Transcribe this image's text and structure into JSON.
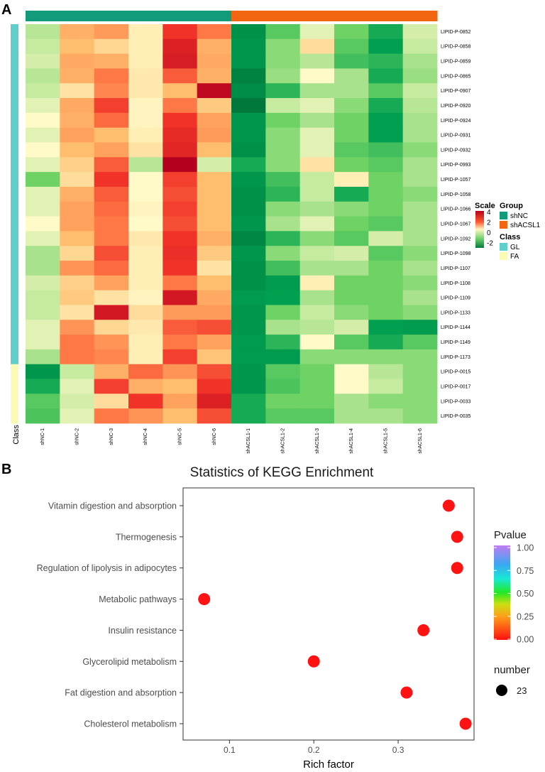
{
  "panels": {
    "a": "A",
    "b": "B"
  },
  "chart_data": [
    {
      "type": "heatmap",
      "panel": "A",
      "columns": [
        "shNC-1",
        "shNC-2",
        "shNC-3",
        "shNC-4",
        "shNC-5",
        "shNC-6",
        "shACSL1-1",
        "shACSL1-2",
        "shACSL1-3",
        "shACSL1-4",
        "shACSL1-5",
        "shACSL1-6"
      ],
      "column_groups": [
        "shNC",
        "shNC",
        "shNC",
        "shNC",
        "shNC",
        "shNC",
        "shACSL1",
        "shACSL1",
        "shACSL1",
        "shACSL1",
        "shACSL1",
        "shACSL1"
      ],
      "rows": [
        "LIPID-P-0852",
        "LIPID-P-0858",
        "LIPID-P-0859",
        "LIPID-P-0865",
        "LIPID-P-0907",
        "LIPID-P-0920",
        "LIPID-P-0924",
        "LIPID-P-0931",
        "LIPID-P-0932",
        "LIPID-P-0993",
        "LIPID-P-1057",
        "LIPID-P-1058",
        "LIPID-P-1066",
        "LIPID-P-1067",
        "LIPID-P-1092",
        "LIPID-P-1098",
        "LIPID-P-1107",
        "LIPID-P-1108",
        "LIPID-P-1109",
        "LIPID-P-1133",
        "LIPID-P-1144",
        "LIPID-P-1149",
        "LIPID-P-1173",
        "LIPID-P-0015",
        "LIPID-P-0017",
        "LIPID-P-0033",
        "LIPID-P-0035"
      ],
      "row_classes": [
        "GL",
        "GL",
        "GL",
        "GL",
        "GL",
        "GL",
        "GL",
        "GL",
        "GL",
        "GL",
        "GL",
        "GL",
        "GL",
        "GL",
        "GL",
        "GL",
        "GL",
        "GL",
        "GL",
        "GL",
        "GL",
        "GL",
        "GL",
        "FA",
        "FA",
        "FA",
        "FA"
      ],
      "values": [
        [
          -0.5,
          1.2,
          1.5,
          0.2,
          3.0,
          2.0,
          -2.3,
          -1.2,
          -0.2,
          -1.0,
          -1.8,
          -0.3
        ],
        [
          -0.4,
          1.0,
          0.6,
          0.2,
          3.4,
          1.2,
          -2.2,
          -0.8,
          0.5,
          -1.2,
          -2.0,
          -0.4
        ],
        [
          -0.3,
          1.3,
          1.2,
          0.2,
          3.5,
          1.3,
          -2.2,
          -0.8,
          -0.5,
          -1.4,
          -1.6,
          -0.6
        ],
        [
          -0.5,
          1.2,
          2.0,
          0.3,
          2.4,
          1.2,
          -2.6,
          -0.7,
          0.0,
          -0.6,
          -1.8,
          -0.7
        ],
        [
          -0.4,
          0.4,
          1.8,
          0.3,
          1.0,
          4.0,
          -2.4,
          -1.6,
          -0.6,
          -0.6,
          -1.2,
          -0.4
        ],
        [
          -0.2,
          1.3,
          2.8,
          0.1,
          2.0,
          0.8,
          -2.8,
          -0.4,
          -0.2,
          -0.8,
          -1.8,
          -0.5
        ],
        [
          0.0,
          1.2,
          2.2,
          0.1,
          3.0,
          1.4,
          -2.2,
          -1.0,
          -0.6,
          -1.0,
          -2.0,
          -0.6
        ],
        [
          -0.2,
          1.4,
          1.0,
          0.2,
          3.2,
          1.5,
          -2.2,
          -0.8,
          -0.2,
          -1.0,
          -2.0,
          -0.6
        ],
        [
          0.0,
          1.0,
          1.4,
          0.4,
          3.3,
          1.0,
          -2.3,
          -0.8,
          -0.2,
          -1.2,
          -1.4,
          -0.8
        ],
        [
          -0.2,
          0.7,
          2.4,
          -0.5,
          4.2,
          -0.3,
          -1.8,
          -0.8,
          0.4,
          -1.0,
          -1.2,
          -0.6
        ],
        [
          -1.0,
          0.5,
          3.0,
          0.0,
          2.8,
          1.0,
          -2.2,
          -1.4,
          -0.4,
          0.2,
          -1.0,
          -0.6
        ],
        [
          -0.2,
          1.2,
          2.4,
          0.0,
          2.6,
          1.0,
          -2.3,
          -1.6,
          -0.4,
          -1.8,
          -1.0,
          -0.8
        ],
        [
          -0.2,
          1.4,
          2.2,
          0.1,
          2.8,
          1.0,
          -2.3,
          -0.8,
          -0.6,
          -0.8,
          -1.0,
          -0.6
        ],
        [
          0.0,
          1.4,
          2.0,
          0.0,
          2.6,
          1.0,
          -2.2,
          -0.6,
          -0.2,
          -1.0,
          -1.2,
          -0.6
        ],
        [
          -0.2,
          1.0,
          2.0,
          0.3,
          3.0,
          1.2,
          -2.5,
          -1.6,
          -0.8,
          -1.2,
          -0.3,
          -0.6
        ],
        [
          -0.6,
          0.6,
          2.6,
          0.2,
          3.1,
          0.8,
          -2.2,
          -0.8,
          -0.4,
          -0.3,
          -1.2,
          -0.8
        ],
        [
          -0.6,
          1.6,
          2.2,
          0.2,
          3.0,
          0.4,
          -2.3,
          -1.4,
          -0.6,
          -0.6,
          -1.0,
          -0.6
        ],
        [
          -0.3,
          0.7,
          1.4,
          0.2,
          2.0,
          1.0,
          -2.3,
          -2.1,
          0.2,
          -1.0,
          -1.0,
          -0.8
        ],
        [
          -0.4,
          0.8,
          0.4,
          0.1,
          3.6,
          1.3,
          -2.1,
          -2.0,
          -0.6,
          -1.0,
          -1.0,
          -0.6
        ],
        [
          -0.4,
          0.4,
          3.6,
          0.5,
          1.5,
          1.5,
          -2.2,
          -1.0,
          -0.4,
          -0.8,
          -1.0,
          -0.8
        ],
        [
          -0.2,
          1.6,
          0.6,
          0.3,
          2.4,
          2.6,
          -2.2,
          -0.6,
          -0.5,
          -0.3,
          -2.0,
          -2.1
        ],
        [
          -0.2,
          2.0,
          1.6,
          0.2,
          2.0,
          1.4,
          -2.1,
          -1.6,
          0.0,
          -1.2,
          -1.8,
          -1.2
        ],
        [
          -0.6,
          2.0,
          1.8,
          0.2,
          2.8,
          0.9,
          -2.1,
          -2.1,
          -0.8,
          -0.8,
          -0.8,
          -0.8
        ],
        [
          -2.2,
          -0.4,
          1.2,
          2.2,
          1.6,
          2.6,
          -2.2,
          -1.2,
          -1.0,
          0.0,
          -0.5,
          -0.8
        ],
        [
          -1.8,
          -0.2,
          2.8,
          1.2,
          1.0,
          3.0,
          -2.2,
          -1.3,
          -1.0,
          0.0,
          -0.4,
          -0.8
        ],
        [
          -1.2,
          -0.3,
          0.5,
          3.0,
          1.4,
          3.4,
          -1.8,
          -1.0,
          -1.0,
          -0.6,
          -0.8,
          -0.8
        ],
        [
          -1.3,
          -0.2,
          2.0,
          1.6,
          1.0,
          2.6,
          -1.8,
          -1.2,
          -1.2,
          -0.6,
          -0.6,
          -0.8
        ]
      ],
      "scale": {
        "title": "Scale",
        "ticks": [
          4,
          2,
          0,
          -2
        ],
        "range": [
          -3,
          4.2
        ]
      },
      "legend": {
        "group_title": "Group",
        "groups": [
          {
            "name": "shNC",
            "color": "#119b7a"
          },
          {
            "name": "shACSL1",
            "color": "#f26511"
          }
        ],
        "class_title": "Class",
        "classes": [
          {
            "name": "GL",
            "color": "#5ecfca"
          },
          {
            "name": "FA",
            "color": "#fbfbb5"
          }
        ]
      },
      "class_axis_label": "Class"
    },
    {
      "type": "scatter",
      "panel": "B",
      "title": "Statistics of KEGG Enrichment",
      "xlabel": "Rich factor",
      "ylabel": "",
      "xlim": [
        0.045,
        0.39
      ],
      "xticks": [
        0.1,
        0.2,
        0.3
      ],
      "xtick_labels": [
        "0.1",
        "0.2",
        "0.3"
      ],
      "categories": [
        "Vitamin digestion and absorption",
        "Thermogenesis",
        "Regulation of lipolysis in adipocytes",
        "Metabolic pathways",
        "Insulin resistance",
        "Glycerolipid metabolism",
        "Fat digestion and absorption",
        "Cholesterol metabolism"
      ],
      "x": [
        0.36,
        0.37,
        0.37,
        0.07,
        0.33,
        0.2,
        0.31,
        0.38
      ],
      "pvalue": [
        0.0,
        0.0,
        0.0,
        0.0,
        0.0,
        0.0,
        0.0,
        0.0
      ],
      "number": [
        23,
        23,
        23,
        23,
        23,
        23,
        23,
        23
      ],
      "color_legend": {
        "title": "Pvalue",
        "ticks": [
          "1.00",
          "0.75",
          "0.50",
          "0.25",
          "0.00"
        ]
      },
      "size_legend": {
        "title": "number",
        "values": [
          "23"
        ]
      }
    }
  ]
}
